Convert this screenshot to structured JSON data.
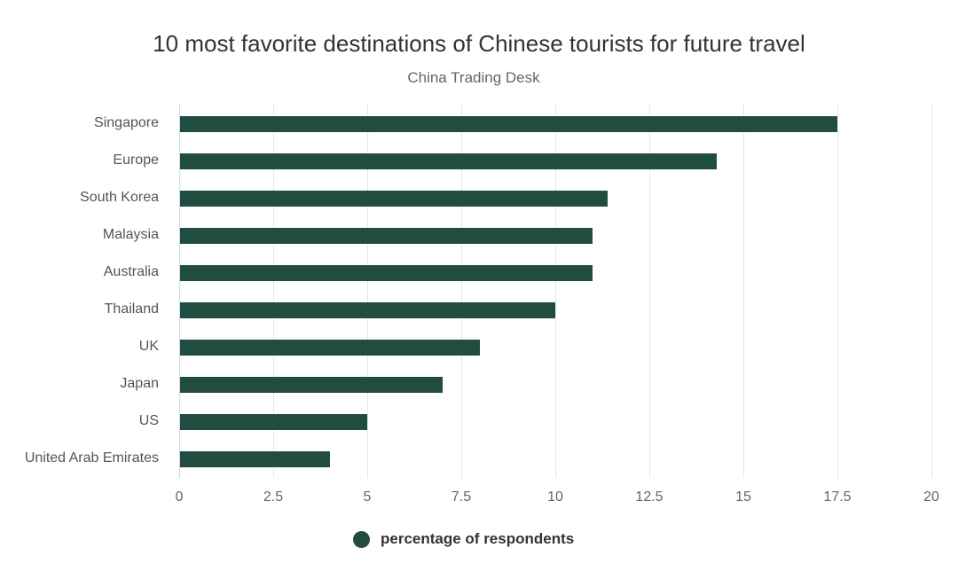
{
  "chart_data": {
    "type": "bar",
    "orientation": "horizontal",
    "title": "10 most favorite destinations of Chinese tourists for future travel",
    "subtitle": "China Trading Desk",
    "categories": [
      "Singapore",
      "Europe",
      "South Korea",
      "Malaysia",
      "Australia",
      "Thailand",
      "UK",
      "Japan",
      "US",
      "United Arab Emirates"
    ],
    "series": [
      {
        "name": "percentage of respondents",
        "color": "#214d41",
        "values": [
          17.5,
          14.3,
          11.4,
          11,
          11,
          10,
          8,
          7,
          5,
          4
        ]
      }
    ],
    "xlabel": "",
    "ylabel": "",
    "xlim": [
      0,
      20
    ],
    "xticks": [
      "0",
      "2.5",
      "5",
      "7.5",
      "10",
      "12.5",
      "15",
      "17.5",
      "20"
    ],
    "grid": true,
    "legend_position": "bottom"
  },
  "header": {
    "title": "10 most favorite destinations of Chinese tourists for future travel",
    "subtitle": "China Trading Desk"
  },
  "legend": {
    "label": "percentage of respondents",
    "icon": "circle-marker-icon"
  },
  "colors": {
    "bar": "#214d41",
    "grid": "#e6e6e6",
    "axis": "#ccd6eb"
  }
}
